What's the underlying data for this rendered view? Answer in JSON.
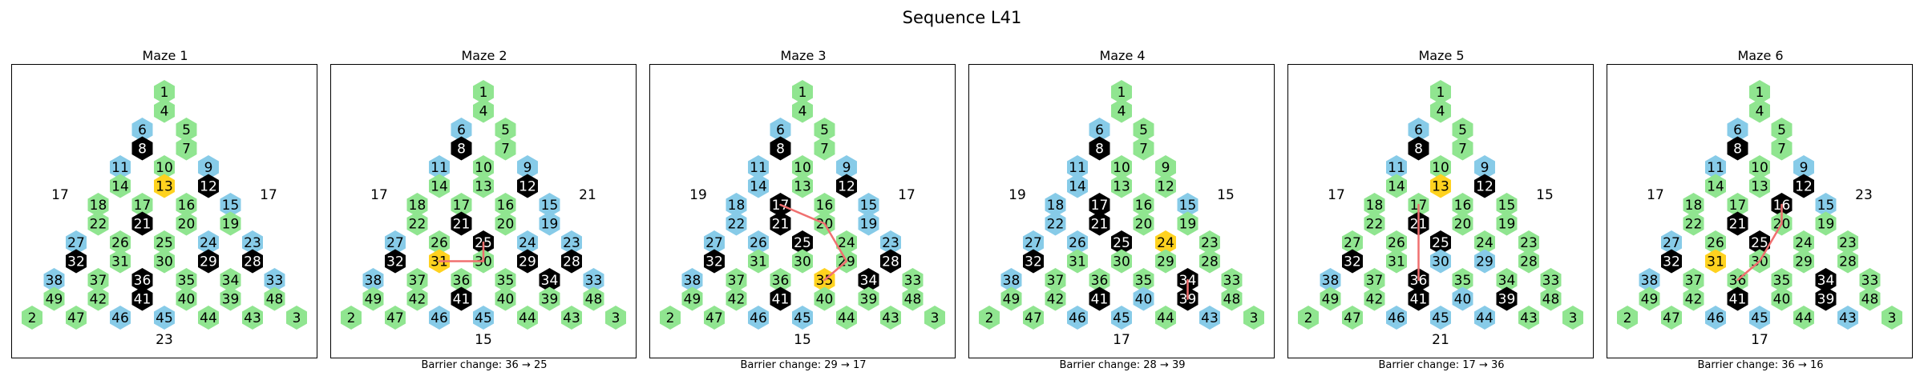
{
  "title": "Sequence L41",
  "colors": {
    "open": "#90e590",
    "blue": "#87cbe8",
    "barrier": "#000000",
    "goal": "#ffd21f",
    "path": "#f07070"
  },
  "layout_rows": [
    [
      1
    ],
    [
      4
    ],
    [
      6,
      5
    ],
    [
      8,
      7
    ],
    [
      11,
      10,
      9
    ],
    [
      14,
      13,
      12
    ],
    [
      18,
      17,
      16,
      15
    ],
    [
      22,
      21,
      20,
      19
    ],
    [
      27,
      26,
      25,
      24,
      23
    ],
    [
      32,
      31,
      30,
      29,
      28
    ],
    [
      38,
      37,
      36,
      35,
      34,
      33
    ],
    [
      49,
      42,
      41,
      40,
      39,
      48
    ],
    [
      2,
      47,
      46,
      45,
      44,
      43,
      3
    ]
  ],
  "mazes": [
    {
      "title": "Maze 1",
      "caption": "",
      "labels": {
        "left": "17",
        "right": "17",
        "bottom": "23"
      },
      "blue": [
        6,
        11,
        9,
        15,
        27,
        24,
        23,
        38,
        33,
        46,
        45
      ],
      "barrier": [
        8,
        12,
        21,
        32,
        29,
        28,
        36,
        41
      ],
      "goal": [
        13
      ],
      "path": []
    },
    {
      "title": "Maze 2",
      "caption": "Barrier change: 36 → 25",
      "labels": {
        "left": "17",
        "right": "21",
        "bottom": "15"
      },
      "blue": [
        6,
        11,
        9,
        15,
        27,
        24,
        23,
        38,
        33,
        46,
        45,
        19
      ],
      "barrier": [
        8,
        12,
        21,
        25,
        32,
        29,
        28,
        34,
        41
      ],
      "goal": [
        31
      ],
      "path": [
        31,
        30,
        25
      ]
    },
    {
      "title": "Maze 3",
      "caption": "Barrier change: 29 → 17",
      "labels": {
        "left": "19",
        "right": "17",
        "bottom": "15"
      },
      "blue": [
        6,
        11,
        9,
        14,
        18,
        15,
        22,
        27,
        26,
        19,
        23,
        38,
        46,
        45
      ],
      "barrier": [
        8,
        12,
        17,
        21,
        25,
        32,
        34,
        28,
        41
      ],
      "goal": [
        35
      ],
      "path": [
        17,
        20,
        29,
        35
      ]
    },
    {
      "title": "Maze 4",
      "caption": "Barrier change: 28 → 39",
      "labels": {
        "left": "19",
        "right": "15",
        "bottom": "17"
      },
      "blue": [
        6,
        11,
        14,
        18,
        15,
        22,
        27,
        26,
        38,
        40,
        46,
        45,
        43
      ],
      "barrier": [
        8,
        17,
        21,
        25,
        32,
        34,
        39,
        41
      ],
      "goal": [
        24
      ],
      "path": [
        34,
        39
      ]
    },
    {
      "title": "Maze 5",
      "caption": "Barrier change: 17 → 36",
      "labels": {
        "left": "17",
        "right": "15",
        "bottom": "21"
      },
      "blue": [
        6,
        11,
        9,
        30,
        29,
        38,
        40,
        46,
        45,
        44
      ],
      "barrier": [
        8,
        12,
        21,
        25,
        32,
        36,
        41,
        39
      ],
      "goal": [
        13
      ],
      "path": [
        17,
        21,
        36
      ]
    },
    {
      "title": "Maze 6",
      "caption": "Barrier change: 36 → 16",
      "labels": {
        "left": "17",
        "right": "23",
        "bottom": "17"
      },
      "blue": [
        6,
        11,
        9,
        15,
        27,
        38,
        46,
        45,
        43
      ],
      "barrier": [
        8,
        12,
        16,
        21,
        25,
        32,
        34,
        41,
        39
      ],
      "goal": [
        31
      ],
      "path": [
        36,
        30,
        20,
        16
      ]
    }
  ]
}
